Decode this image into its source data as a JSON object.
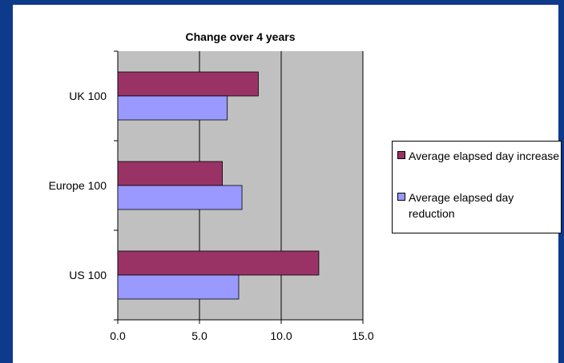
{
  "chart_data": {
    "type": "bar",
    "orientation": "horizontal",
    "title": "Change over 4 years",
    "categories": [
      "UK 100",
      "Europe 100",
      "US 100"
    ],
    "series": [
      {
        "name": "Average elapsed day increase",
        "color": "#993366",
        "values": [
          8.6,
          6.4,
          12.3
        ]
      },
      {
        "name": "Average elapsed day reduction",
        "color": "#9999ff",
        "values": [
          6.7,
          7.6,
          7.4
        ]
      }
    ],
    "xlim": [
      0,
      15
    ],
    "x_ticks": [
      "0.0",
      "5.0",
      "10.0",
      "15.0"
    ],
    "grid": true,
    "plot_background": "#c0c0c0",
    "legend_position": "right"
  }
}
